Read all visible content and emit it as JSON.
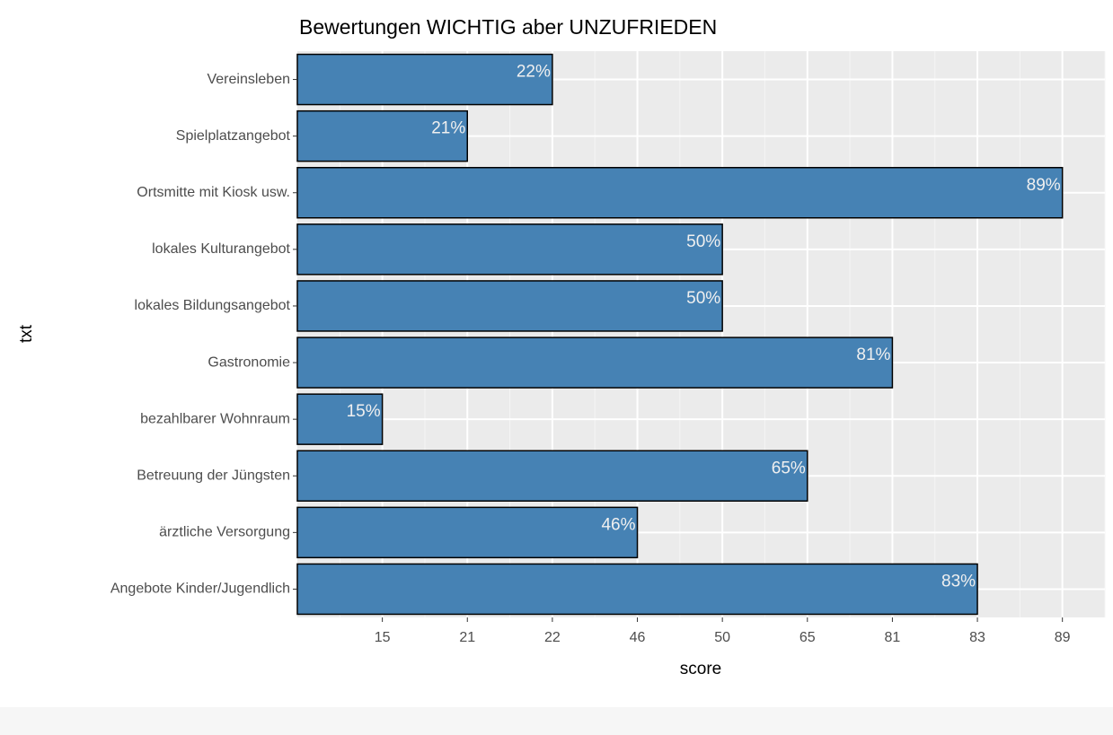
{
  "chart_data": {
    "type": "bar",
    "orientation": "horizontal",
    "title": "Bewertungen WICHTIG aber UNZUFRIEDEN",
    "x_label": "score",
    "y_label": "txt",
    "categories": [
      "Vereinsleben",
      "Spielplatzangebot",
      "Ortsmitte mit Kiosk usw.",
      "lokales Kulturangebot",
      "lokales Bildungsangebot",
      "Gastronomie",
      "bezahlbarer Wohnraum",
      "Betreuung der Jüngsten",
      "ärztliche Versorgung",
      "Angebote Kinder/Jugendlich"
    ],
    "values": [
      22,
      21,
      89,
      50,
      50,
      81,
      15,
      65,
      46,
      83
    ],
    "value_labels": [
      "22%",
      "21%",
      "89%",
      "50%",
      "50%",
      "81%",
      "15%",
      "65%",
      "46%",
      "83%"
    ],
    "x_levels": [
      15,
      21,
      22,
      46,
      50,
      65,
      81,
      83,
      89
    ],
    "color": "#4682b4",
    "grid": true
  }
}
